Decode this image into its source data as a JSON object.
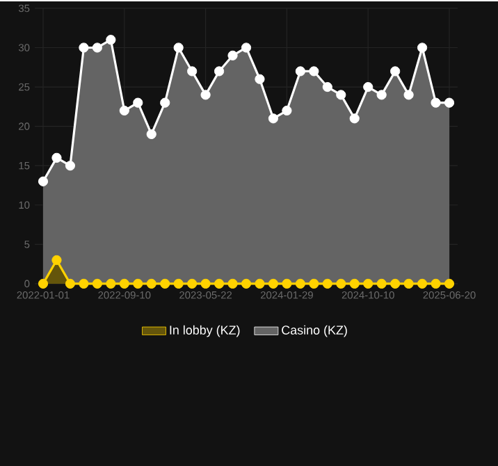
{
  "chart_data": {
    "type": "area",
    "categories": [
      "2022-01-01",
      null,
      null,
      null,
      null,
      null,
      "2022-09-10",
      null,
      null,
      null,
      null,
      null,
      "2023-05-22",
      null,
      null,
      null,
      null,
      null,
      "2024-01-29",
      null,
      null,
      null,
      null,
      null,
      "2024-10-10",
      null,
      null,
      null,
      null,
      null,
      "2025-06-20"
    ],
    "series": [
      {
        "name": "In lobby (KZ)",
        "color": "#ffd200",
        "values": [
          0,
          3,
          0,
          0,
          0,
          0,
          0,
          0,
          0,
          0,
          0,
          0,
          0,
          0,
          0,
          0,
          0,
          0,
          0,
          0,
          0,
          0,
          0,
          0,
          0,
          0,
          0,
          0,
          0,
          0,
          0
        ]
      },
      {
        "name": "Casino (KZ)",
        "color": "#ffffff",
        "values": [
          13,
          16,
          15,
          30,
          30,
          31,
          22,
          23,
          19,
          23,
          30,
          27,
          24,
          27,
          29,
          30,
          26,
          21,
          22,
          27,
          27,
          25,
          24,
          21,
          25,
          24,
          27,
          24,
          30,
          23,
          23
        ]
      }
    ],
    "ylim": [
      0,
      35
    ],
    "yticks": [
      0,
      5,
      10,
      15,
      20,
      25,
      30,
      35
    ],
    "grid": true,
    "legend": "bottom",
    "marker": "circle"
  }
}
